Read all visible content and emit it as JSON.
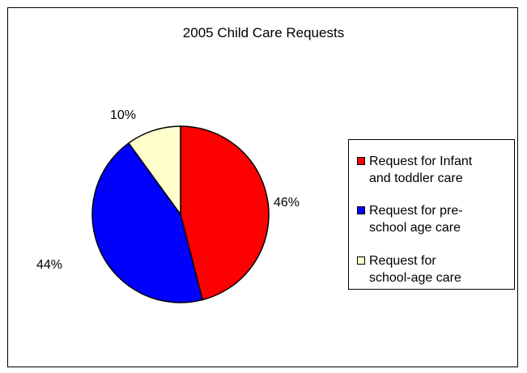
{
  "chart_data": {
    "type": "pie",
    "title": "2005 Child Care Requests",
    "slices": [
      {
        "label": "46%",
        "value": 46,
        "color": "#ff0000"
      },
      {
        "label": "44%",
        "value": 44,
        "color": "#0000ff"
      },
      {
        "label": "10%",
        "value": 10,
        "color": "#ffffcc"
      }
    ],
    "legend": {
      "placement": "right",
      "entries": [
        {
          "lines": [
            "Request for Infant",
            "and toddler care"
          ],
          "color": "#ff0000"
        },
        {
          "lines": [
            "Request for pre-",
            "school age care"
          ],
          "color": "#0000ff"
        },
        {
          "lines": [
            "Request for",
            "school-age care"
          ],
          "color": "#ffffcc"
        }
      ]
    }
  }
}
